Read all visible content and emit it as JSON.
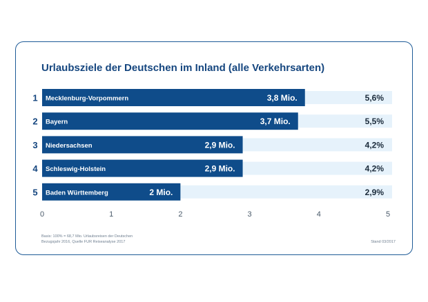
{
  "chart_data": {
    "type": "bar",
    "orientation": "horizontal",
    "title": "Urlaubsziele der Deutschen im Inland (alle Verkehrsarten)",
    "ranks": [
      "1",
      "2",
      "3",
      "4",
      "5"
    ],
    "categories": [
      "Mecklenburg-Vorpommern",
      "Bayern",
      "Niedersachsen",
      "Schleswig-Holstein",
      "Baden Württemberg"
    ],
    "values": [
      3.8,
      3.7,
      2.9,
      2.9,
      2.0
    ],
    "value_labels": [
      "3,8 Mio.",
      "3,7 Mio.",
      "2,9 Mio.",
      "2,9 Mio.",
      "2 Mio."
    ],
    "percent_labels": [
      "5,6%",
      "5,5%",
      "4,2%",
      "4,2%",
      "2,9%"
    ],
    "xlim": [
      0,
      5
    ],
    "xticks": [
      "0",
      "1",
      "2",
      "3",
      "4",
      "5"
    ],
    "xlabel": "",
    "ylabel": "",
    "grid": false,
    "colors": {
      "bar": "#0f4c8a",
      "track": "#e6f2fb",
      "rank": "#15467f",
      "text_dark": "#1a2a3a",
      "tick": "#4a5a6a"
    }
  },
  "footer": {
    "basis": "Basis: 100% = 68,7 Mio. Urlaubsreisen der Deutschen",
    "source": "Bezugsjahr 2016, Quelle FUR Reiseanalyse 2017",
    "stand": "Stand 03/2017"
  }
}
